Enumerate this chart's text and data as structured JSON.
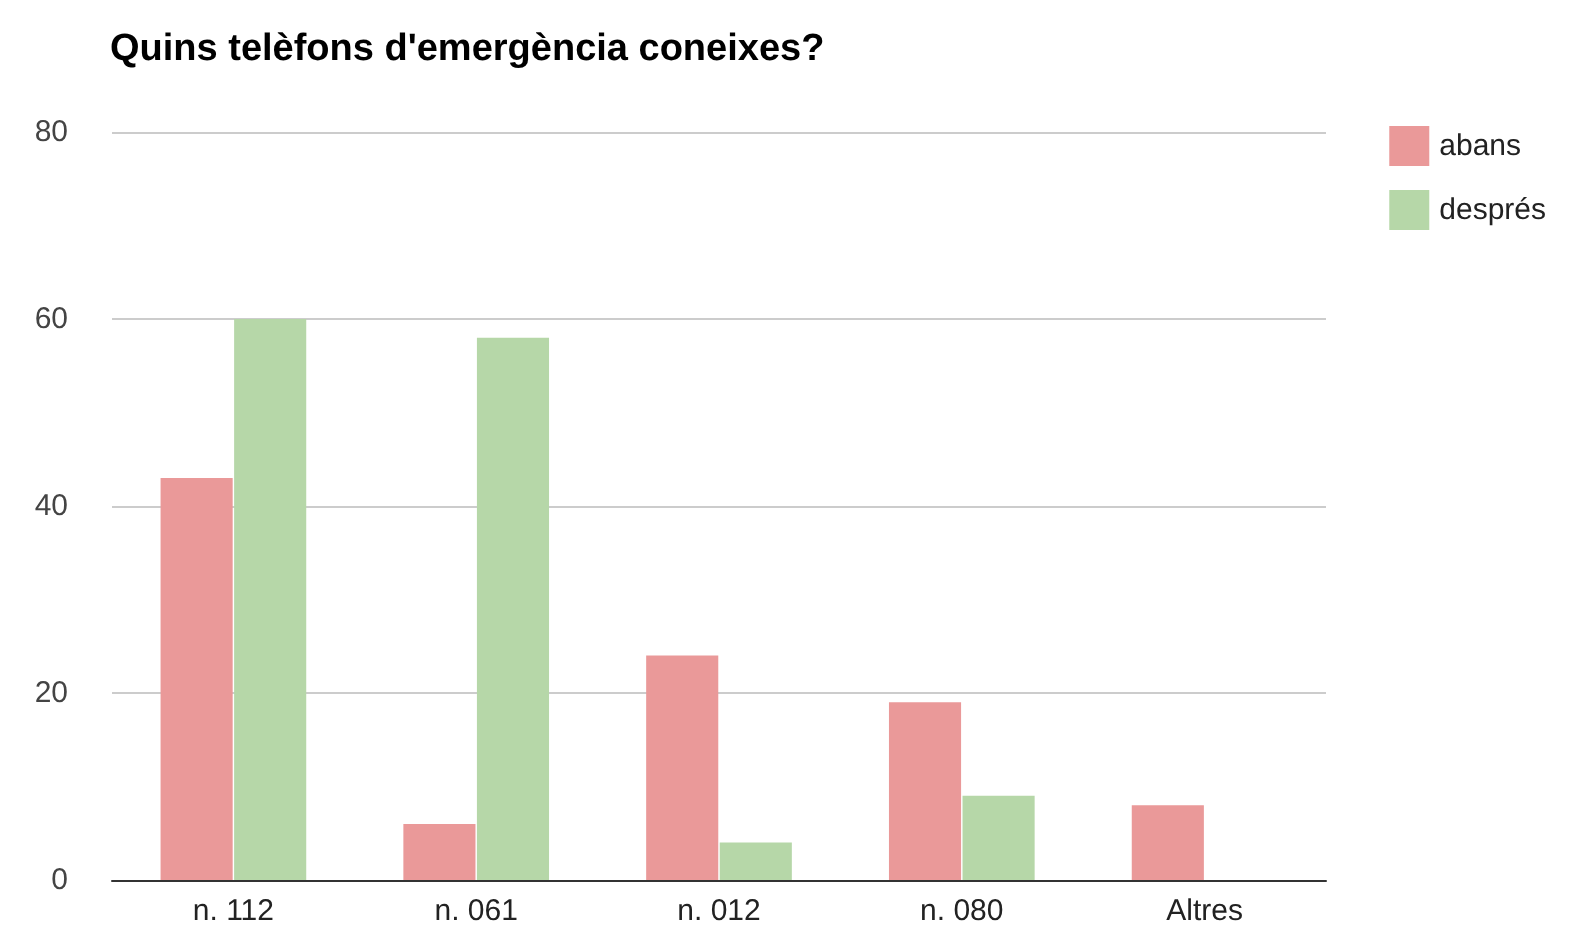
{
  "chart_data": {
    "type": "bar",
    "title": "Quins telèfons d'emergència coneixes?",
    "categories": [
      "n. 112",
      "n. 061",
      "n. 012",
      "n. 080",
      "Altres"
    ],
    "series": [
      {
        "name": "abans",
        "color": "#ea9999",
        "values": [
          43,
          6,
          24,
          19,
          8
        ]
      },
      {
        "name": "després",
        "color": "#b6d7a8",
        "values": [
          60,
          58,
          4,
          9,
          0
        ]
      }
    ],
    "ylim": [
      0,
      80
    ],
    "yticks": [
      0,
      20,
      40,
      60,
      80
    ],
    "grid": "y",
    "legend": "top right"
  }
}
